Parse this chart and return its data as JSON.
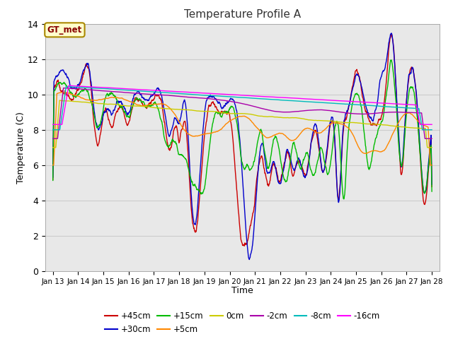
{
  "title": "Temperature Profile A",
  "xlabel": "Time",
  "ylabel": "Temperature (C)",
  "ylim": [
    0,
    14
  ],
  "background_color": "#ffffff",
  "plot_bg_color": "#e8e8e8",
  "series": {
    "+45cm": {
      "color": "#cc0000",
      "lw": 1.0
    },
    "+30cm": {
      "color": "#0000cc",
      "lw": 1.0
    },
    "+15cm": {
      "color": "#00bb00",
      "lw": 1.0
    },
    "+5cm": {
      "color": "#ff8800",
      "lw": 1.0
    },
    "0cm": {
      "color": "#cccc00",
      "lw": 1.0
    },
    "-2cm": {
      "color": "#aa00aa",
      "lw": 1.0
    },
    "-8cm": {
      "color": "#00bbbb",
      "lw": 1.0
    },
    "-16cm": {
      "color": "#ff00ff",
      "lw": 1.0
    }
  },
  "xtick_labels": [
    "Jan 13",
    "Jan 14",
    "Jan 15",
    "Jan 16",
    "Jan 17",
    "Jan 18",
    "Jan 19",
    "Jan 20",
    "Jan 21",
    "Jan 22",
    "Jan 23",
    "Jan 24",
    "Jan 25",
    "Jan 26",
    "Jan 27",
    "Jan 28"
  ],
  "ytick_labels": [
    "0",
    "2",
    "4",
    "6",
    "8",
    "10",
    "12",
    "14"
  ],
  "annotation_text": "GT_met",
  "annotation_box_color": "#ffffcc",
  "annotation_border_color": "#aa8800",
  "annotation_text_color": "#880000"
}
